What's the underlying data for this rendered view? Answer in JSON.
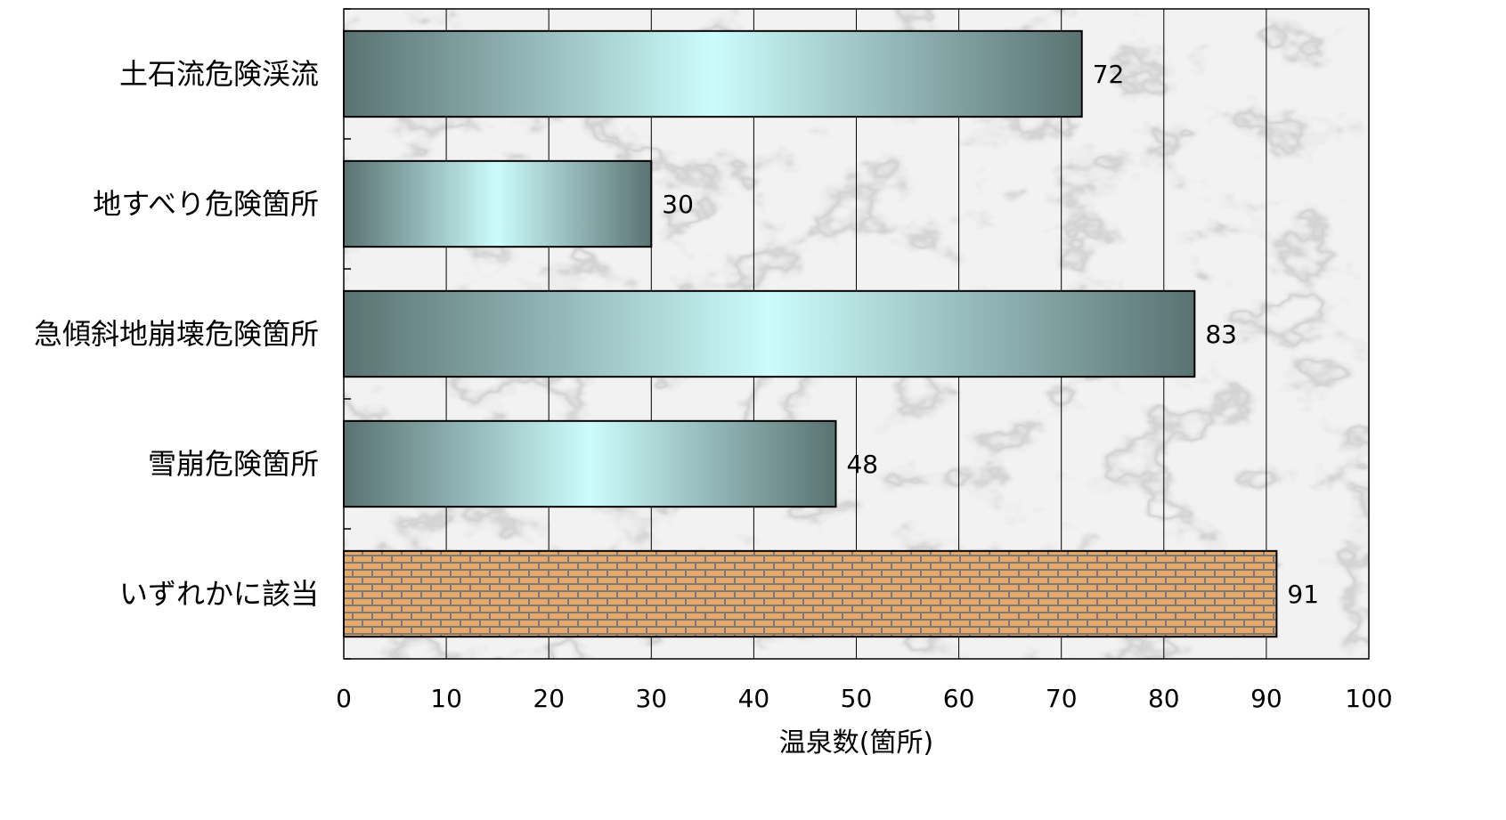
{
  "chart_data": {
    "type": "bar",
    "orientation": "horizontal",
    "categories": [
      "土石流危険渓流",
      "地すべり危険箇所",
      "急傾斜地崩壊危険箇所",
      "雪崩危険箇所",
      "いずれかに該当"
    ],
    "values": [
      72,
      30,
      83,
      48,
      91
    ],
    "data_labels": [
      "72",
      "30",
      "83",
      "48",
      "91"
    ],
    "xlabel": "温泉数(箇所)",
    "ylabel": "",
    "title": "",
    "xlim": [
      0,
      100
    ],
    "xticks": [
      "0",
      "10",
      "20",
      "30",
      "40",
      "50",
      "60",
      "70",
      "80",
      "90",
      "100"
    ],
    "grid": "vertical",
    "legend": "none",
    "plot_background": "marble",
    "bar_styles": [
      "gradient",
      "gradient",
      "gradient",
      "gradient",
      "brick"
    ],
    "colors": {
      "gradient_dark": "#5a7272",
      "gradient_light": "#ccfcfc",
      "brick_fill": "#e8a868",
      "brick_mortar": "#7a7a7a",
      "grid": "#000000"
    }
  }
}
